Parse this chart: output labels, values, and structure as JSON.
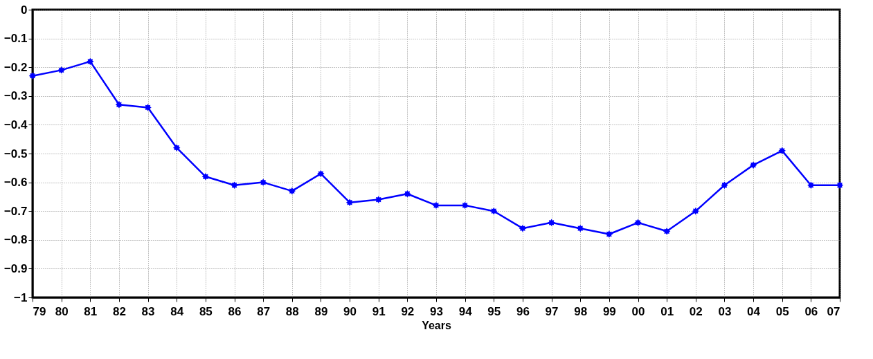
{
  "chart_data": {
    "type": "line",
    "xlabel": "Years",
    "categories": [
      "79",
      "80",
      "81",
      "82",
      "83",
      "84",
      "85",
      "86",
      "87",
      "88",
      "89",
      "90",
      "91",
      "92",
      "93",
      "94",
      "95",
      "96",
      "97",
      "98",
      "99",
      "00",
      "01",
      "02",
      "03",
      "04",
      "05",
      "06",
      "07"
    ],
    "series": [
      {
        "color": "#0000ff",
        "values": [
          -0.23,
          -0.21,
          -0.18,
          -0.33,
          -0.34,
          -0.48,
          -0.58,
          -0.61,
          -0.6,
          -0.63,
          -0.57,
          -0.67,
          -0.66,
          -0.64,
          -0.68,
          -0.68,
          -0.7,
          -0.76,
          -0.74,
          -0.76,
          -0.78,
          -0.74,
          -0.77,
          -0.7,
          -0.61,
          -0.54,
          -0.49,
          -0.61,
          -0.61
        ]
      }
    ],
    "ylim": [
      -1,
      0
    ],
    "yticks": [
      -1,
      -0.9,
      -0.8,
      -0.7,
      -0.6,
      -0.5,
      -0.4,
      -0.3,
      -0.2,
      -0.1,
      0
    ],
    "grid": true,
    "marker": "star",
    "line_style": "solid"
  }
}
